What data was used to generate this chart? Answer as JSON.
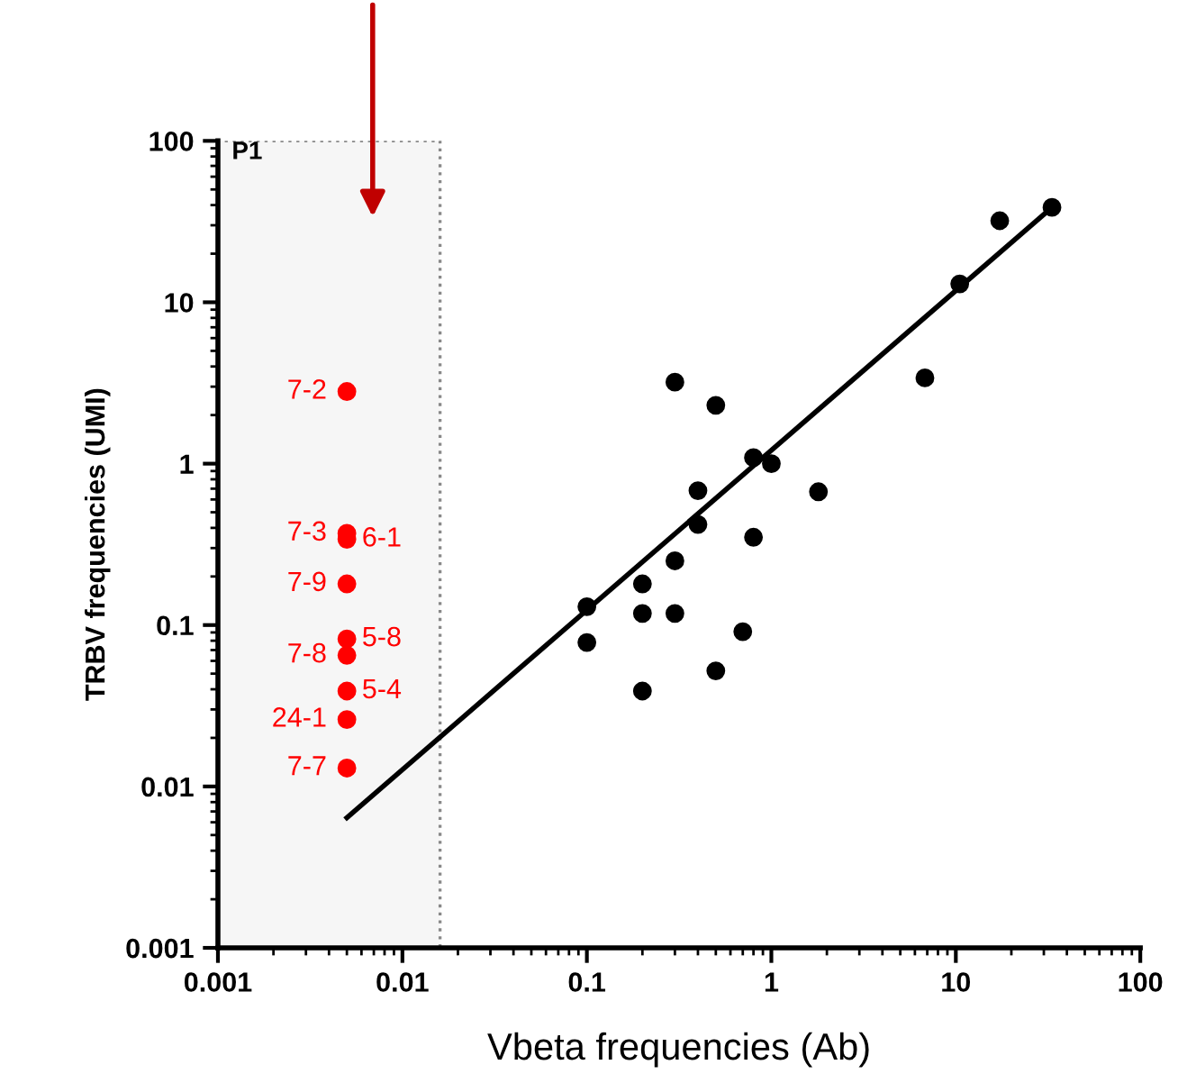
{
  "chart_data": {
    "type": "scatter",
    "xlabel": "Vbeta frequencies (Ab)",
    "ylabel": "TRBV frequencies (UMI)",
    "log": "xy",
    "xlim": [
      0.001,
      100
    ],
    "ylim": [
      0.001,
      100
    ],
    "xticks": [
      0.001,
      0.01,
      0.1,
      1,
      10,
      100
    ],
    "yticks": [
      0.001,
      0.01,
      0.1,
      1,
      10,
      100
    ],
    "grid": false,
    "marker": "circle",
    "bands": [
      {
        "axis": "x",
        "from": 0.001,
        "to": 0.016,
        "label": "P1",
        "color": "#888888"
      }
    ],
    "series": [
      {
        "color": "#ff0000",
        "x": [
          0.005,
          0.005,
          0.005,
          0.005,
          0.005,
          0.005
        ],
        "values": [
          2.8,
          0.37,
          0.18,
          0.065,
          0.026,
          0.013
        ],
        "value_labels": [
          "7-2",
          "7-3",
          "7-9",
          "7-8",
          "24-1",
          "7-7"
        ]
      },
      {
        "color": "#ff0000",
        "x": [
          0.005,
          0.005,
          0.005
        ],
        "values": [
          0.34,
          0.082,
          0.039
        ],
        "value_labels": [
          "6-1",
          "5-8",
          "5-4"
        ]
      },
      {
        "color": "#000000",
        "x": [
          33.2,
          17.3,
          10.5,
          6.8,
          0.3,
          0.5,
          0.8,
          1.0,
          0.4,
          1.8,
          0.4,
          0.8,
          0.3,
          0.2,
          0.1,
          0.2,
          0.3,
          0.7,
          0.1,
          0.5,
          0.2
        ],
        "values": [
          38.7,
          32,
          13,
          3.4,
          3.2,
          2.3,
          1.09,
          1.0,
          0.68,
          0.67,
          0.42,
          0.35,
          0.25,
          0.18,
          0.13,
          0.118,
          0.118,
          0.091,
          0.078,
          0.052,
          0.039
        ]
      },
      {
        "type": "line",
        "color": "#000000",
        "line_style": "solid",
        "marker": "none",
        "x": [
          0.005,
          33.2
        ],
        "values": [
          0.0064,
          38.7
        ]
      }
    ]
  }
}
